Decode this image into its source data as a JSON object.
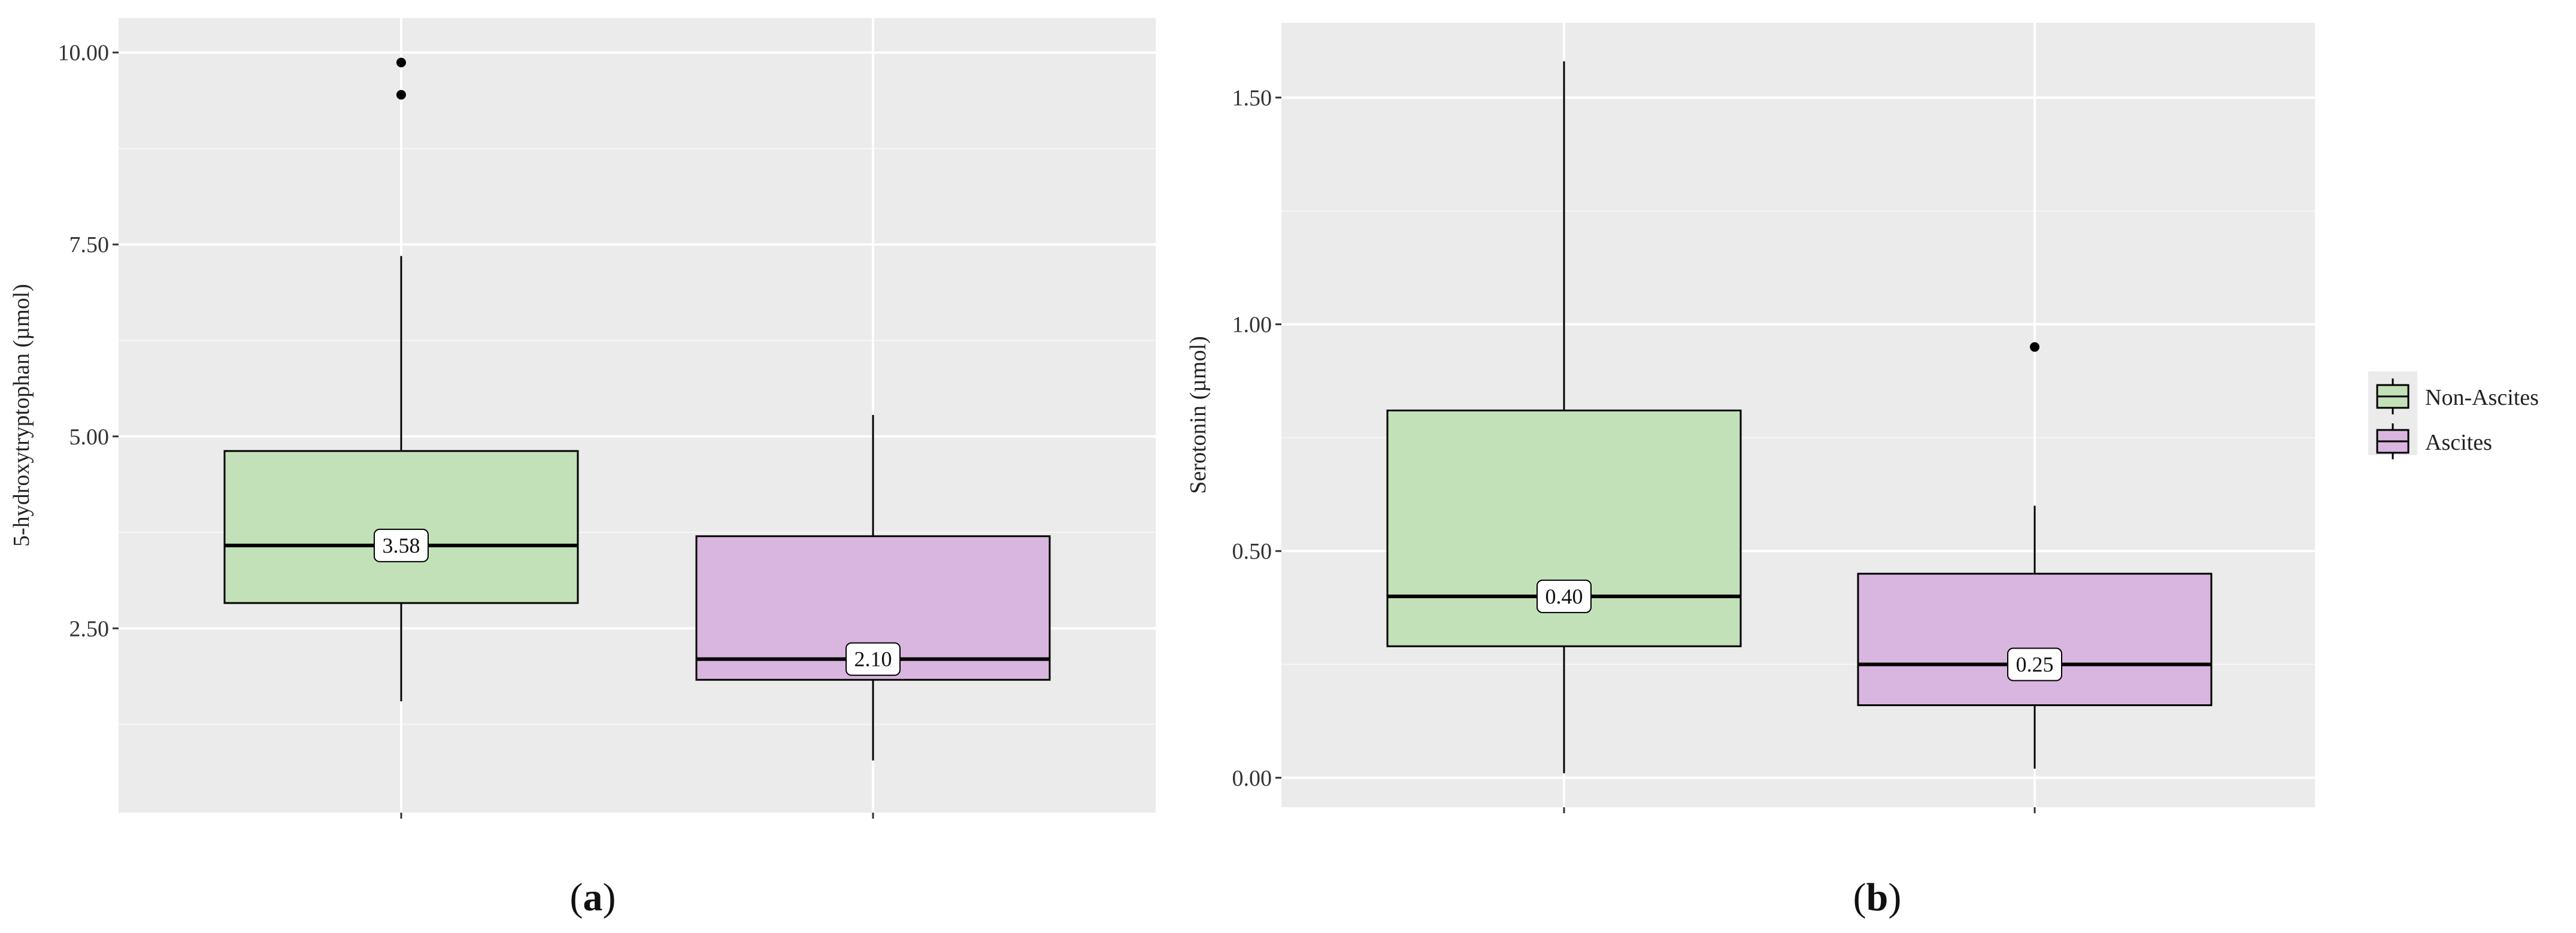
{
  "chart_data": [
    {
      "type": "box",
      "panel_label": "a",
      "ylabel": "5-hydroxytryptophan (µmol)",
      "xlabel": "",
      "ylim": [
        0.1,
        10.45
      ],
      "yticks": [
        2.5,
        5.0,
        7.5,
        10.0
      ],
      "ytick_labels": [
        "2.50",
        "5.00",
        "7.50",
        "10.00"
      ],
      "grid": true,
      "categories": [
        "Non-Ascites",
        "Ascites"
      ],
      "boxes": [
        {
          "name": "Non-Ascites",
          "color": "#c2e1b8",
          "q1": 2.83,
          "median": 3.58,
          "q3": 4.81,
          "whisker_low": 1.55,
          "whisker_high": 7.35,
          "outliers": [
            9.45,
            9.87
          ],
          "median_label": "3.58"
        },
        {
          "name": "Ascites",
          "color": "#d9b6df",
          "q1": 1.83,
          "median": 2.1,
          "q3": 3.7,
          "whisker_low": 0.78,
          "whisker_high": 5.28,
          "outliers": [],
          "median_label": "2.10"
        }
      ]
    },
    {
      "type": "box",
      "panel_label": "b",
      "ylabel": "Serotonin (µmol)",
      "xlabel": "",
      "ylim": [
        -0.065,
        1.665
      ],
      "yticks": [
        0.0,
        0.5,
        1.0,
        1.5
      ],
      "ytick_labels": [
        "0.00",
        "0.50",
        "1.00",
        "1.50"
      ],
      "grid": true,
      "categories": [
        "Non-Ascites",
        "Ascites"
      ],
      "boxes": [
        {
          "name": "Non-Ascites",
          "color": "#c2e1b8",
          "q1": 0.29,
          "median": 0.4,
          "q3": 0.81,
          "whisker_low": 0.01,
          "whisker_high": 1.58,
          "outliers": [],
          "median_label": "0.40"
        },
        {
          "name": "Ascites",
          "color": "#d9b6df",
          "q1": 0.16,
          "median": 0.25,
          "q3": 0.45,
          "whisker_low": 0.02,
          "whisker_high": 0.6,
          "outliers": [
            0.95
          ],
          "median_label": "0.25"
        }
      ]
    }
  ],
  "legend": {
    "placement": "right",
    "items": [
      {
        "label": "Non-Ascites",
        "color": "#c2e1b8"
      },
      {
        "label": "Ascites",
        "color": "#d9b6df"
      }
    ]
  },
  "colors": {
    "panel_background": "#ebebeb",
    "gridline": "#ffffff",
    "box_outline": "#000000"
  }
}
